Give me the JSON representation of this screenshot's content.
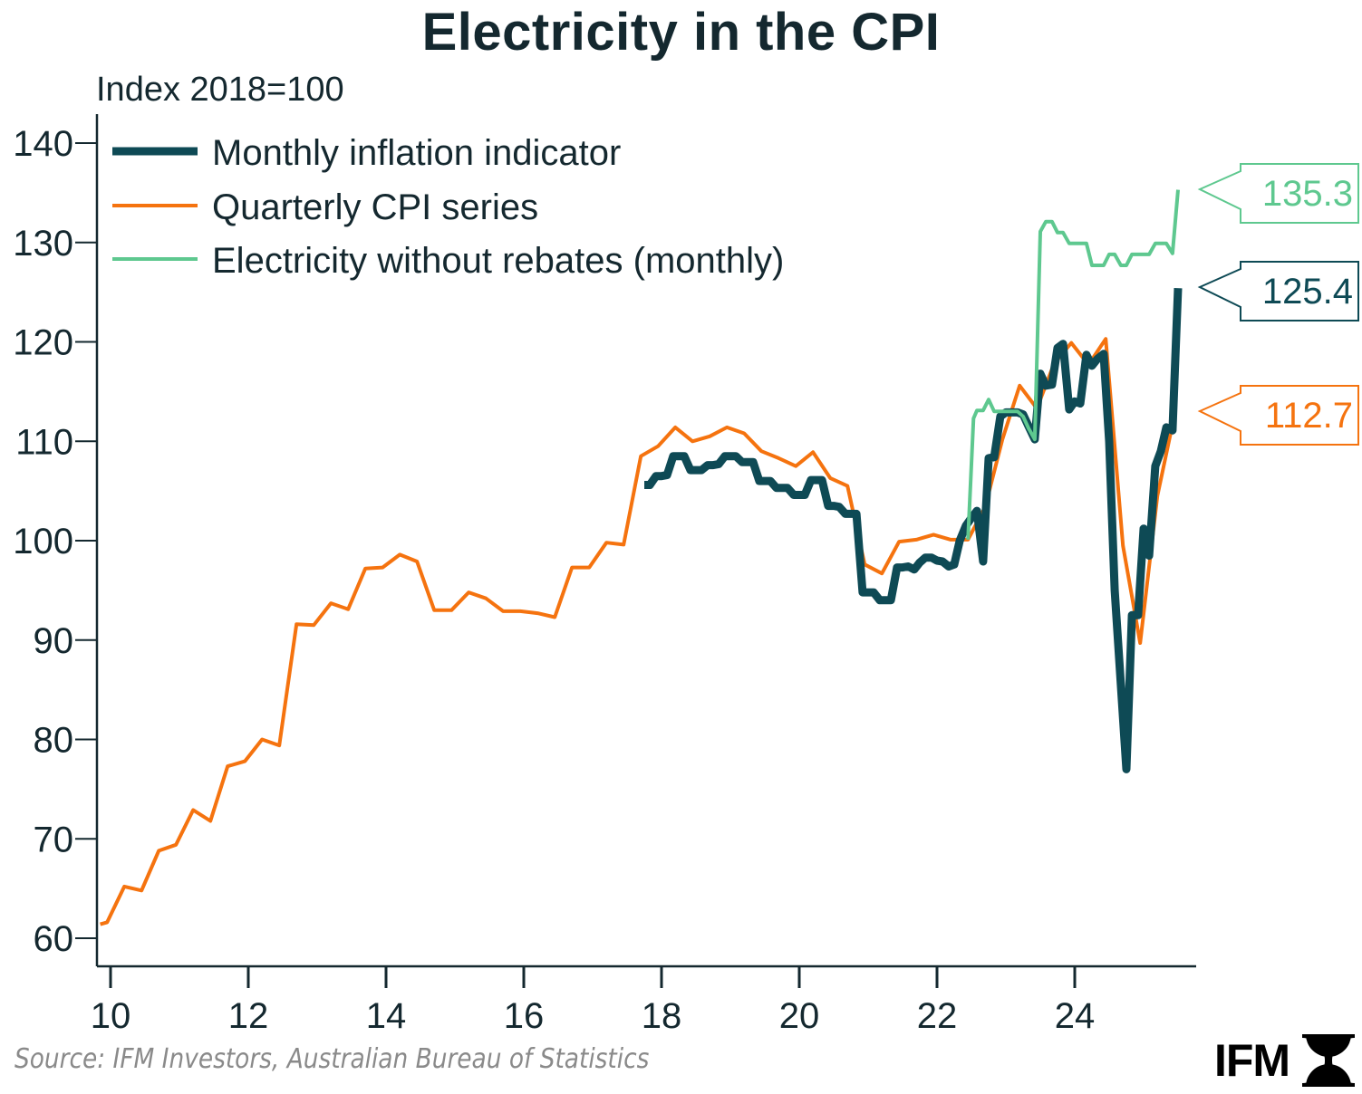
{
  "chart_data": {
    "type": "line",
    "title": "Electricity in the CPI",
    "ylabel": "Index 2018=100",
    "xlabel": "",
    "xlim": [
      2009.85,
      2025.9
    ],
    "ylim": [
      56,
      143
    ],
    "yticks": [
      60,
      70,
      80,
      90,
      100,
      110,
      120,
      130,
      140
    ],
    "xticks": [
      {
        "value": 2010,
        "label": "10"
      },
      {
        "value": 2012,
        "label": "12"
      },
      {
        "value": 2014,
        "label": "14"
      },
      {
        "value": 2016,
        "label": "16"
      },
      {
        "value": 2018,
        "label": "18"
      },
      {
        "value": 2020,
        "label": "20"
      },
      {
        "value": 2022,
        "label": "22"
      },
      {
        "value": 2024,
        "label": "24"
      }
    ],
    "grid": false,
    "legend_position": "top-left",
    "series": [
      {
        "name": "Monthly inflation indicator",
        "color": "#0e4a55",
        "last_value_label": "125.4",
        "points": [
          [
            2017.75,
            105.6
          ],
          [
            2017.83,
            105.6
          ],
          [
            2017.92,
            106.5
          ],
          [
            2018.0,
            106.5
          ],
          [
            2018.08,
            106.6
          ],
          [
            2018.17,
            108.5
          ],
          [
            2018.25,
            108.5
          ],
          [
            2018.33,
            108.5
          ],
          [
            2018.42,
            107.1
          ],
          [
            2018.5,
            107.1
          ],
          [
            2018.58,
            107.1
          ],
          [
            2018.67,
            107.6
          ],
          [
            2018.75,
            107.6
          ],
          [
            2018.83,
            107.7
          ],
          [
            2018.92,
            108.5
          ],
          [
            2019.0,
            108.5
          ],
          [
            2019.08,
            108.5
          ],
          [
            2019.17,
            107.9
          ],
          [
            2019.25,
            107.9
          ],
          [
            2019.33,
            107.9
          ],
          [
            2019.42,
            106.0
          ],
          [
            2019.5,
            106.0
          ],
          [
            2019.58,
            106.0
          ],
          [
            2019.67,
            105.3
          ],
          [
            2019.75,
            105.3
          ],
          [
            2019.83,
            105.3
          ],
          [
            2019.92,
            104.6
          ],
          [
            2020.0,
            104.6
          ],
          [
            2020.08,
            104.6
          ],
          [
            2020.17,
            106.1
          ],
          [
            2020.25,
            106.1
          ],
          [
            2020.33,
            106.1
          ],
          [
            2020.42,
            103.5
          ],
          [
            2020.5,
            103.5
          ],
          [
            2020.58,
            103.4
          ],
          [
            2020.67,
            102.7
          ],
          [
            2020.75,
            102.7
          ],
          [
            2020.83,
            102.7
          ],
          [
            2020.92,
            94.8
          ],
          [
            2021.0,
            94.8
          ],
          [
            2021.08,
            94.8
          ],
          [
            2021.17,
            94.0
          ],
          [
            2021.25,
            94.0
          ],
          [
            2021.33,
            94.0
          ],
          [
            2021.42,
            97.3
          ],
          [
            2021.5,
            97.3
          ],
          [
            2021.58,
            97.4
          ],
          [
            2021.67,
            97.1
          ],
          [
            2021.75,
            97.8
          ],
          [
            2021.83,
            98.3
          ],
          [
            2021.92,
            98.3
          ],
          [
            2022.0,
            98.0
          ],
          [
            2022.08,
            97.9
          ],
          [
            2022.17,
            97.4
          ],
          [
            2022.25,
            97.6
          ],
          [
            2022.33,
            100.0
          ],
          [
            2022.42,
            101.5
          ],
          [
            2022.5,
            102.3
          ],
          [
            2022.58,
            103.0
          ],
          [
            2022.67,
            97.9
          ],
          [
            2022.75,
            108.3
          ],
          [
            2022.83,
            108.4
          ],
          [
            2022.92,
            112.5
          ],
          [
            2023.0,
            112.9
          ],
          [
            2023.08,
            112.9
          ],
          [
            2023.17,
            112.9
          ],
          [
            2023.25,
            112.7
          ],
          [
            2023.33,
            111.5
          ],
          [
            2023.42,
            110.2
          ],
          [
            2023.5,
            116.8
          ],
          [
            2023.58,
            115.6
          ],
          [
            2023.67,
            115.7
          ],
          [
            2023.75,
            119.4
          ],
          [
            2023.83,
            119.8
          ],
          [
            2023.92,
            113.2
          ],
          [
            2024.0,
            114.0
          ],
          [
            2024.08,
            113.8
          ],
          [
            2024.17,
            118.7
          ],
          [
            2024.25,
            117.6
          ],
          [
            2024.33,
            118.3
          ],
          [
            2024.42,
            118.8
          ],
          [
            2024.5,
            110.0
          ],
          [
            2024.58,
            95.0
          ],
          [
            2024.67,
            85.5
          ],
          [
            2024.75,
            77.0
          ],
          [
            2024.83,
            92.5
          ],
          [
            2024.92,
            92.5
          ],
          [
            2025.0,
            101.2
          ],
          [
            2025.08,
            98.5
          ],
          [
            2025.17,
            107.5
          ],
          [
            2025.25,
            109.0
          ],
          [
            2025.33,
            111.4
          ],
          [
            2025.42,
            111.1
          ],
          [
            2025.5,
            125.4
          ]
        ]
      },
      {
        "name": "Quarterly CPI series",
        "color": "#f5730f",
        "last_value_label": "112.7",
        "points": [
          [
            2009.85,
            61.4
          ],
          [
            2009.95,
            61.6
          ],
          [
            2010.2,
            65.2
          ],
          [
            2010.45,
            64.8
          ],
          [
            2010.7,
            68.8
          ],
          [
            2010.95,
            69.4
          ],
          [
            2011.2,
            72.9
          ],
          [
            2011.45,
            71.8
          ],
          [
            2011.7,
            77.3
          ],
          [
            2011.95,
            77.8
          ],
          [
            2012.2,
            80.0
          ],
          [
            2012.45,
            79.4
          ],
          [
            2012.7,
            91.6
          ],
          [
            2012.95,
            91.5
          ],
          [
            2013.2,
            93.7
          ],
          [
            2013.45,
            93.1
          ],
          [
            2013.7,
            97.2
          ],
          [
            2013.95,
            97.3
          ],
          [
            2014.2,
            98.6
          ],
          [
            2014.45,
            97.9
          ],
          [
            2014.7,
            93.0
          ],
          [
            2014.95,
            93.0
          ],
          [
            2015.2,
            94.8
          ],
          [
            2015.45,
            94.2
          ],
          [
            2015.7,
            92.9
          ],
          [
            2015.95,
            92.9
          ],
          [
            2016.2,
            92.7
          ],
          [
            2016.45,
            92.3
          ],
          [
            2016.7,
            97.3
          ],
          [
            2016.95,
            97.3
          ],
          [
            2017.2,
            99.8
          ],
          [
            2017.45,
            99.6
          ],
          [
            2017.7,
            108.5
          ],
          [
            2017.95,
            109.5
          ],
          [
            2018.2,
            111.4
          ],
          [
            2018.45,
            110.0
          ],
          [
            2018.7,
            110.5
          ],
          [
            2018.95,
            111.4
          ],
          [
            2019.2,
            110.8
          ],
          [
            2019.45,
            109.0
          ],
          [
            2019.7,
            108.3
          ],
          [
            2019.95,
            107.5
          ],
          [
            2020.2,
            108.9
          ],
          [
            2020.45,
            106.3
          ],
          [
            2020.7,
            105.5
          ],
          [
            2020.95,
            97.6
          ],
          [
            2021.2,
            96.7
          ],
          [
            2021.45,
            99.9
          ],
          [
            2021.7,
            100.1
          ],
          [
            2021.95,
            100.6
          ],
          [
            2022.2,
            100.1
          ],
          [
            2022.45,
            100.1
          ],
          [
            2022.7,
            103.4
          ],
          [
            2022.95,
            110.2
          ],
          [
            2023.2,
            115.6
          ],
          [
            2023.45,
            113.3
          ],
          [
            2023.7,
            117.8
          ],
          [
            2023.95,
            119.9
          ],
          [
            2024.2,
            117.7
          ],
          [
            2024.45,
            120.3
          ],
          [
            2024.7,
            99.5
          ],
          [
            2024.95,
            89.7
          ],
          [
            2025.2,
            104.5
          ],
          [
            2025.45,
            112.7
          ]
        ]
      },
      {
        "name": "Electricity without rebates (monthly)",
        "color": "#5ec88f",
        "last_value_label": "135.3",
        "points": [
          [
            2022.45,
            100.1
          ],
          [
            2022.53,
            112.3
          ],
          [
            2022.58,
            113.1
          ],
          [
            2022.67,
            113.1
          ],
          [
            2022.75,
            114.2
          ],
          [
            2022.83,
            113.0
          ],
          [
            2022.92,
            113.0
          ],
          [
            2023.0,
            113.0
          ],
          [
            2023.08,
            113.0
          ],
          [
            2023.17,
            113.0
          ],
          [
            2023.25,
            112.5
          ],
          [
            2023.33,
            111.3
          ],
          [
            2023.42,
            110.2
          ],
          [
            2023.5,
            131.1
          ],
          [
            2023.58,
            132.1
          ],
          [
            2023.67,
            132.1
          ],
          [
            2023.75,
            131.0
          ],
          [
            2023.83,
            131.0
          ],
          [
            2023.92,
            129.9
          ],
          [
            2024.0,
            129.9
          ],
          [
            2024.08,
            129.9
          ],
          [
            2024.17,
            129.9
          ],
          [
            2024.25,
            127.7
          ],
          [
            2024.33,
            127.7
          ],
          [
            2024.42,
            127.7
          ],
          [
            2024.5,
            128.8
          ],
          [
            2024.58,
            128.8
          ],
          [
            2024.67,
            127.7
          ],
          [
            2024.75,
            127.7
          ],
          [
            2024.83,
            128.8
          ],
          [
            2024.92,
            128.8
          ],
          [
            2025.0,
            128.8
          ],
          [
            2025.08,
            128.8
          ],
          [
            2025.17,
            129.9
          ],
          [
            2025.25,
            129.9
          ],
          [
            2025.33,
            129.9
          ],
          [
            2025.42,
            128.9
          ],
          [
            2025.5,
            135.3
          ]
        ]
      }
    ]
  },
  "legend": {
    "items": [
      {
        "label": "Monthly inflation indicator"
      },
      {
        "label": "Quarterly CPI series"
      },
      {
        "label": "Electricity without rebates (monthly)"
      }
    ]
  },
  "footer": {
    "source": "Source: IFM Investors, Australian Bureau of Statistics",
    "logo_text": "IFM"
  }
}
